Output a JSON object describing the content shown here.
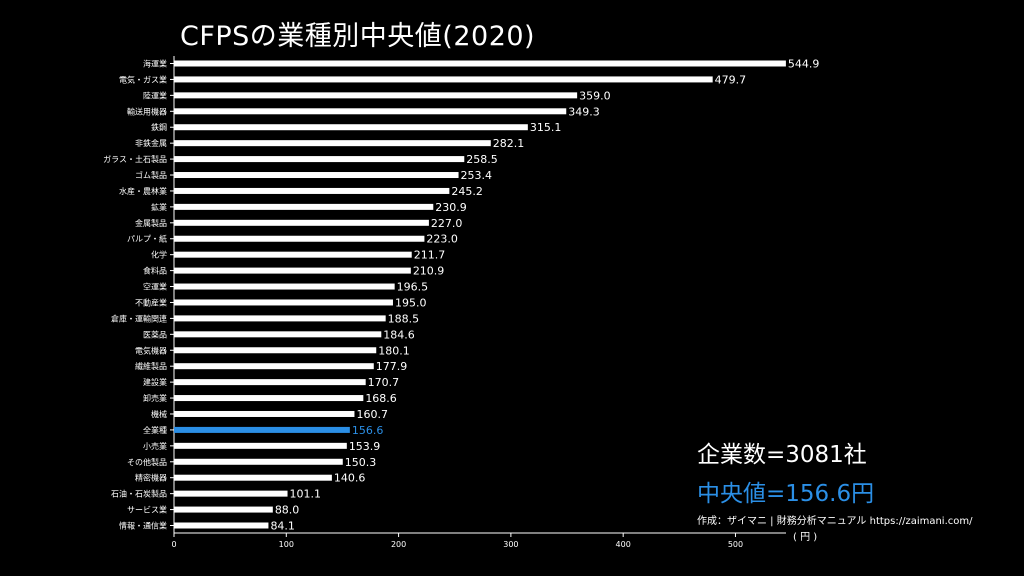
{
  "title": "CFPSの業種別中央値(2020)",
  "company_count": "企業数=3081社",
  "median_text": "中央値=156.6円",
  "source": "作成：ザイマニ | 財務分析マニュアル https://zaimani.com/",
  "unit": "( 円 )",
  "colors": {
    "bar": "#ffffff",
    "highlight": "#2b8fe6",
    "background": "#000000"
  },
  "chart_data": {
    "type": "bar",
    "orientation": "horizontal",
    "title": "CFPSの業種別中央値(2020)",
    "xlabel": "( 円 )",
    "xlim": [
      0,
      545
    ],
    "xticks": [
      0,
      100,
      200,
      300,
      400,
      500
    ],
    "highlight_category": "全業種",
    "categories": [
      "海運業",
      "電気・ガス業",
      "陸運業",
      "輸送用機器",
      "鉄鋼",
      "非鉄金属",
      "ガラス・土石製品",
      "ゴム製品",
      "水産・農林業",
      "鉱業",
      "金属製品",
      "パルプ・紙",
      "化学",
      "食料品",
      "空運業",
      "不動産業",
      "倉庫・運輸関連",
      "医薬品",
      "電気機器",
      "繊維製品",
      "建設業",
      "卸売業",
      "機械",
      "全業種",
      "小売業",
      "その他製品",
      "精密機器",
      "石油・石炭製品",
      "サービス業",
      "情報・通信業"
    ],
    "values": [
      544.9,
      479.7,
      359.0,
      349.3,
      315.1,
      282.1,
      258.5,
      253.4,
      245.2,
      230.9,
      227.0,
      223.0,
      211.7,
      210.9,
      196.5,
      195.0,
      188.5,
      184.6,
      180.1,
      177.9,
      170.7,
      168.6,
      160.7,
      156.6,
      153.9,
      150.3,
      140.6,
      101.1,
      88.0,
      84.1
    ],
    "value_labels": [
      "544.9",
      "479.7",
      "359.0",
      "349.3",
      "315.1",
      "282.1",
      "258.5",
      "253.4",
      "245.2",
      "230.9",
      "227.0",
      "223.0",
      "211.7",
      "210.9",
      "196.5",
      "195.0",
      "188.5",
      "184.6",
      "180.1",
      "177.9",
      "170.7",
      "168.6",
      "160.7",
      "156.6",
      "153.9",
      "150.3",
      "140.6",
      "101.1",
      "88.0",
      "84.1"
    ]
  }
}
